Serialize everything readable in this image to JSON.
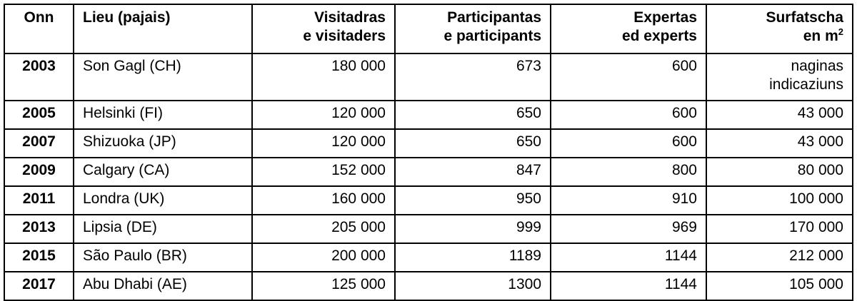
{
  "table": {
    "headers": {
      "year": "Onn",
      "place": "Lieu (pajais)",
      "visitors": [
        "Visitadras",
        "e visitaders"
      ],
      "participants": [
        "Participantas",
        "e participants"
      ],
      "experts": [
        "Expertas",
        "ed experts"
      ],
      "surface": [
        "Surfatscha",
        "en m",
        "2"
      ]
    },
    "rows": [
      {
        "year": "2003",
        "place": "Son Gagl (CH)",
        "visitors": "180 000",
        "participants": "673",
        "experts": "600",
        "surface": [
          "naginas",
          "indicaziuns"
        ]
      },
      {
        "year": "2005",
        "place": "Helsinki (FI)",
        "visitors": "120 000",
        "participants": "650",
        "experts": "600",
        "surface": [
          "43 000"
        ]
      },
      {
        "year": "2007",
        "place": "Shizuoka (JP)",
        "visitors": "120 000",
        "participants": "650",
        "experts": "600",
        "surface": [
          "43 000"
        ]
      },
      {
        "year": "2009",
        "place": "Calgary (CA)",
        "visitors": "152 000",
        "participants": "847",
        "experts": "800",
        "surface": [
          "80 000"
        ]
      },
      {
        "year": "2011",
        "place": "Londra (UK)",
        "visitors": "160 000",
        "participants": "950",
        "experts": "910",
        "surface": [
          "100 000"
        ]
      },
      {
        "year": "2013",
        "place": "Lipsia (DE)",
        "visitors": "205 000",
        "participants": "999",
        "experts": "969",
        "surface": [
          "170 000"
        ]
      },
      {
        "year": "2015",
        "place": "São Paulo (BR)",
        "visitors": "200 000",
        "participants": "1189",
        "experts": "1144",
        "surface": [
          "212 000"
        ]
      },
      {
        "year": "2017",
        "place": "Abu Dhabi (AE)",
        "visitors": "125 000",
        "participants": "1300",
        "experts": "1144",
        "surface": [
          "105 000"
        ]
      }
    ]
  }
}
